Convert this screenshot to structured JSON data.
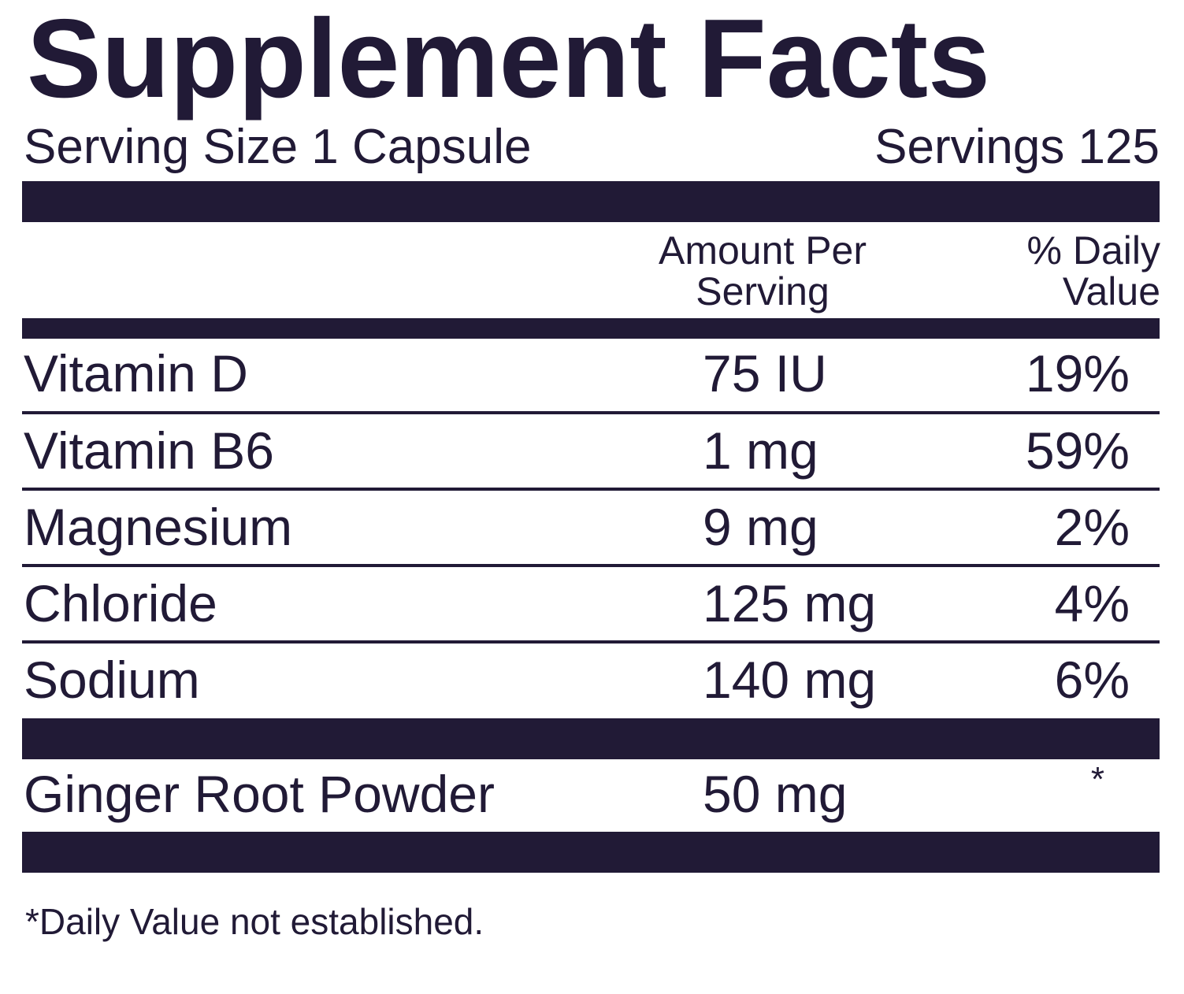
{
  "title": "Supplement Facts",
  "serving": {
    "size": "Serving Size 1 Capsule",
    "count": "Servings 125"
  },
  "headers": {
    "amount_line1": "Amount Per",
    "amount_line2": "Serving",
    "dv_line1": "% Daily",
    "dv_line2": "Value"
  },
  "rows": [
    {
      "name": "Vitamin D",
      "amount": "75 IU",
      "dv": "19%"
    },
    {
      "name": "Vitamin B6",
      "amount": "1 mg",
      "dv": "59%"
    },
    {
      "name": "Magnesium",
      "amount": "9 mg",
      "dv": "2%"
    },
    {
      "name": "Chloride",
      "amount": "125 mg",
      "dv": "4%"
    },
    {
      "name": "Sodium",
      "amount": "140 mg",
      "dv": "6%"
    }
  ],
  "other": [
    {
      "name": "Ginger Root Powder",
      "amount": "50 mg",
      "dv": "*"
    }
  ],
  "footnote": "*Daily Value not established.",
  "colors": {
    "ink": "#211a36",
    "background": "#ffffff"
  }
}
